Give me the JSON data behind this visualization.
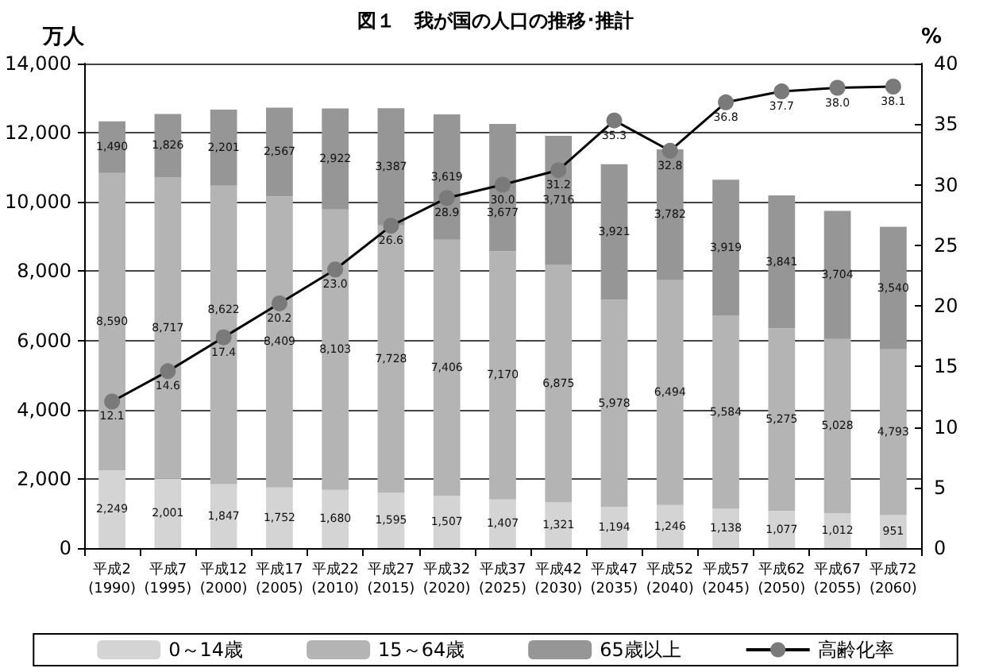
{
  "chart_data": {
    "type": "bar",
    "title": "図１　我が国の人口の推移･推計",
    "ylabel": "万人",
    "y2label": "%",
    "categories": [
      "平成2\n(1990)",
      "平成7\n(1995)",
      "平成12\n(2000)",
      "平成17\n(2005)",
      "平成22\n(2010)",
      "平成27\n(2015)",
      "平成32\n(2020)",
      "平成37\n(2025)",
      "平成42\n(2030)",
      "平成47\n(2035)",
      "平成52\n(2040)",
      "平成57\n(2045)",
      "平成62\n(2050)",
      "平成67\n(2055)",
      "平成72\n(2060)"
    ],
    "stacked": true,
    "grid": "y",
    "legend": "bottom",
    "marker": "circle",
    "series": [
      {
        "name": "0～14歳",
        "color": "#d4d4d4",
        "values": [
          2249,
          2001,
          1847,
          1752,
          1680,
          1595,
          1507,
          1407,
          1321,
          1194,
          1246,
          1138,
          1077,
          1012,
          951
        ],
        "value_labels": [
          "2,249",
          "2,001",
          "1,847",
          "1,752",
          "1,680",
          "1,595",
          "1,507",
          "1,407",
          "1,321",
          "1,194",
          "1,246",
          "1,138",
          "1,077",
          "1,012",
          "951"
        ]
      },
      {
        "name": "15～64歳",
        "color": "#b4b4b4",
        "values": [
          8590,
          8717,
          8622,
          8409,
          8103,
          7728,
          7406,
          7170,
          6875,
          5978,
          6494,
          5584,
          5275,
          5028,
          4793
        ],
        "value_labels": [
          "8,590",
          "8,717",
          "8,622",
          "8,409",
          "8,103",
          "7,728",
          "7,406",
          "7,170",
          "6,875",
          "5,978",
          "6,494",
          "5,584",
          "5,275",
          "5,028",
          "4,793"
        ]
      },
      {
        "name": "65歳以上",
        "color": "#969696",
        "values": [
          1490,
          1826,
          2201,
          2567,
          2922,
          3387,
          3619,
          3677,
          3716,
          3921,
          3782,
          3919,
          3841,
          3704,
          3540
        ],
        "value_labels": [
          "1,490",
          "1,826",
          "2,201",
          "2,567",
          "2,922",
          "3,387",
          "3,619",
          "3,677",
          "3,716",
          "3,921",
          "3,782",
          "3,919",
          "3,841",
          "3,704",
          "3,540"
        ]
      },
      {
        "name": "高齢化率",
        "type": "line",
        "axis": "y2",
        "color": "#7a7a7a",
        "values": [
          12.1,
          14.6,
          17.4,
          20.2,
          23.0,
          26.6,
          28.9,
          30.0,
          31.2,
          35.3,
          32.8,
          36.8,
          37.7,
          38.0,
          38.1
        ],
        "value_labels": [
          "12.1",
          "14.6",
          "17.4",
          "20.2",
          "23.0",
          "26.6",
          "28.9",
          "30.0",
          "31.2",
          "35.3",
          "32.8",
          "36.8",
          "37.7",
          "38.0",
          "38.1"
        ]
      }
    ],
    "ylim": [
      0,
      14000
    ],
    "yticks": [
      {
        "value": 0,
        "label": "0"
      },
      {
        "value": 2000,
        "label": "2,000"
      },
      {
        "value": 4000,
        "label": "4,000"
      },
      {
        "value": 6000,
        "label": "6,000"
      },
      {
        "value": 8000,
        "label": "8,000"
      },
      {
        "value": 10000,
        "label": "10,000"
      },
      {
        "value": 12000,
        "label": "12,000"
      },
      {
        "value": 14000,
        "label": "14,000"
      }
    ],
    "y2lim": [
      0,
      40
    ],
    "y2ticks": [
      0,
      5,
      10,
      15,
      20,
      25,
      30,
      35,
      40
    ]
  }
}
